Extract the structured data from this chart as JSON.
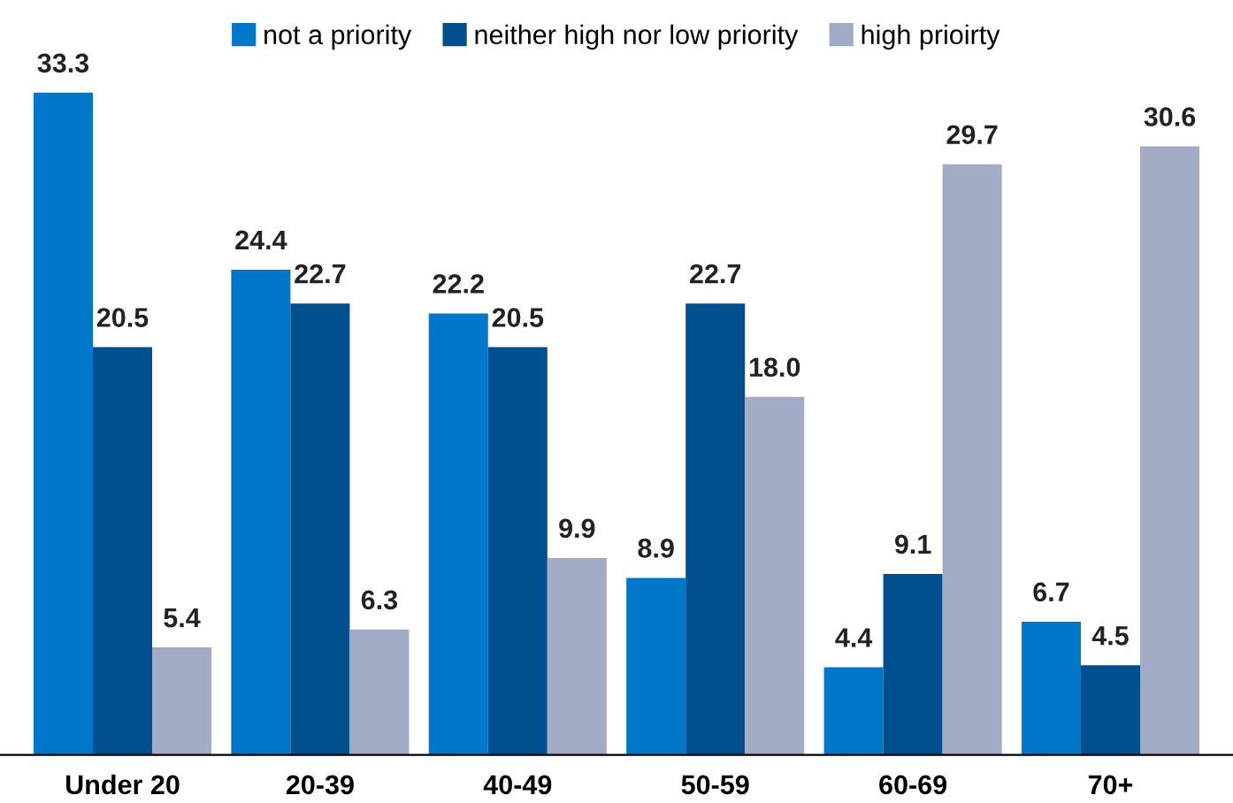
{
  "chart_data": {
    "type": "bar",
    "categories": [
      "Under 20",
      "20-39",
      "40-49",
      "50-59",
      "60-69",
      "70+"
    ],
    "series": [
      {
        "name": "not a priority",
        "color": "#0077c8",
        "values": [
          33.3,
          24.4,
          22.2,
          8.9,
          4.4,
          6.7
        ]
      },
      {
        "name": "neither high nor low priority",
        "color": "#004f8f",
        "values": [
          20.5,
          22.7,
          20.5,
          22.7,
          9.1,
          4.5
        ]
      },
      {
        "name": "high prioirty",
        "color": "#a2abc5",
        "values": [
          5.4,
          6.3,
          9.9,
          18.0,
          29.7,
          30.6
        ],
        "value_labels": [
          "5.4",
          "6.3",
          "9.9",
          "18.0",
          "29.7",
          "30.6"
        ]
      }
    ],
    "data_labels": true,
    "legend": "top",
    "grid": false
  }
}
